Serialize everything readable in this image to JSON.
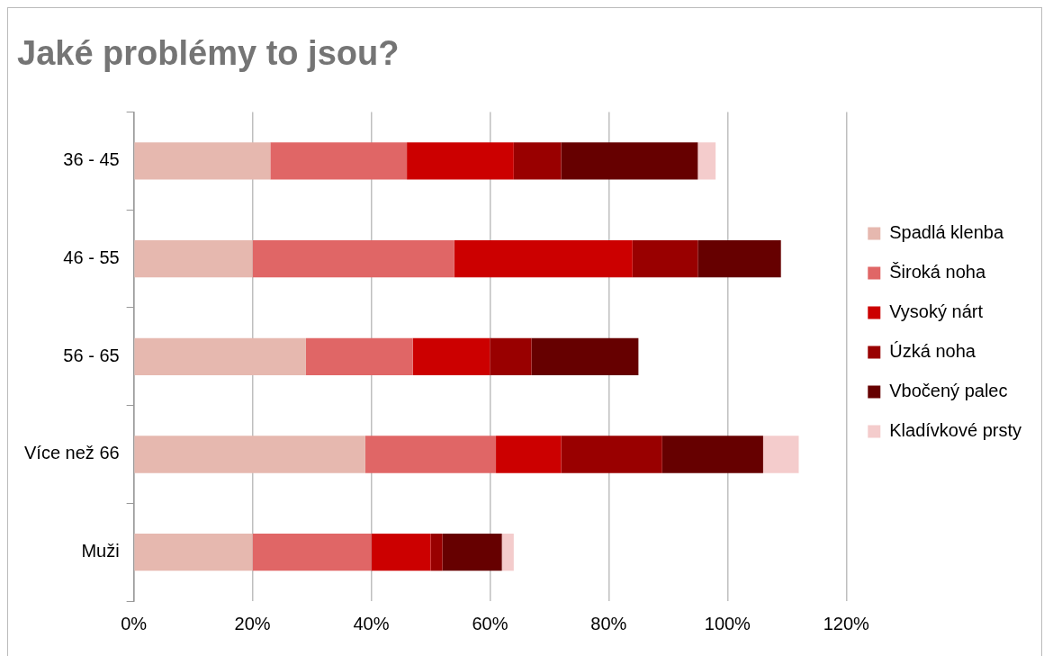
{
  "chart_data": {
    "type": "bar",
    "orientation": "horizontal",
    "stacked": true,
    "title": "Jaké problémy to jsou?",
    "categories": [
      "36 - 45",
      "46 - 55",
      "56 - 65",
      "Více než 66",
      "Muži"
    ],
    "series": [
      {
        "name": "Spadlá klenba",
        "color": "#e6b8af",
        "values": [
          23,
          20,
          29,
          39,
          20
        ]
      },
      {
        "name": "Široká noha",
        "color": "#e06666",
        "values": [
          23,
          34,
          18,
          22,
          20
        ]
      },
      {
        "name": "Vysoký nárt",
        "color": "#cc0000",
        "values": [
          18,
          30,
          13,
          11,
          10
        ]
      },
      {
        "name": "Úzká noha",
        "color": "#990000",
        "values": [
          8,
          11,
          7,
          17,
          2
        ]
      },
      {
        "name": "Vbočený palec",
        "color": "#660000",
        "values": [
          23,
          14,
          18,
          17,
          10
        ]
      },
      {
        "name": "Kladívkové prsty",
        "color": "#f4cccc",
        "values": [
          3,
          null,
          null,
          6,
          2
        ]
      }
    ],
    "xlim": [
      0,
      120
    ],
    "xticks": [
      {
        "value": 0,
        "label": "0%"
      },
      {
        "value": 20,
        "label": "20%"
      },
      {
        "value": 40,
        "label": "40%"
      },
      {
        "value": 60,
        "label": "60%"
      },
      {
        "value": 80,
        "label": "80%"
      },
      {
        "value": 100,
        "label": "100%"
      },
      {
        "value": 120,
        "label": "120%"
      }
    ],
    "grid": "x",
    "legend": "right"
  }
}
